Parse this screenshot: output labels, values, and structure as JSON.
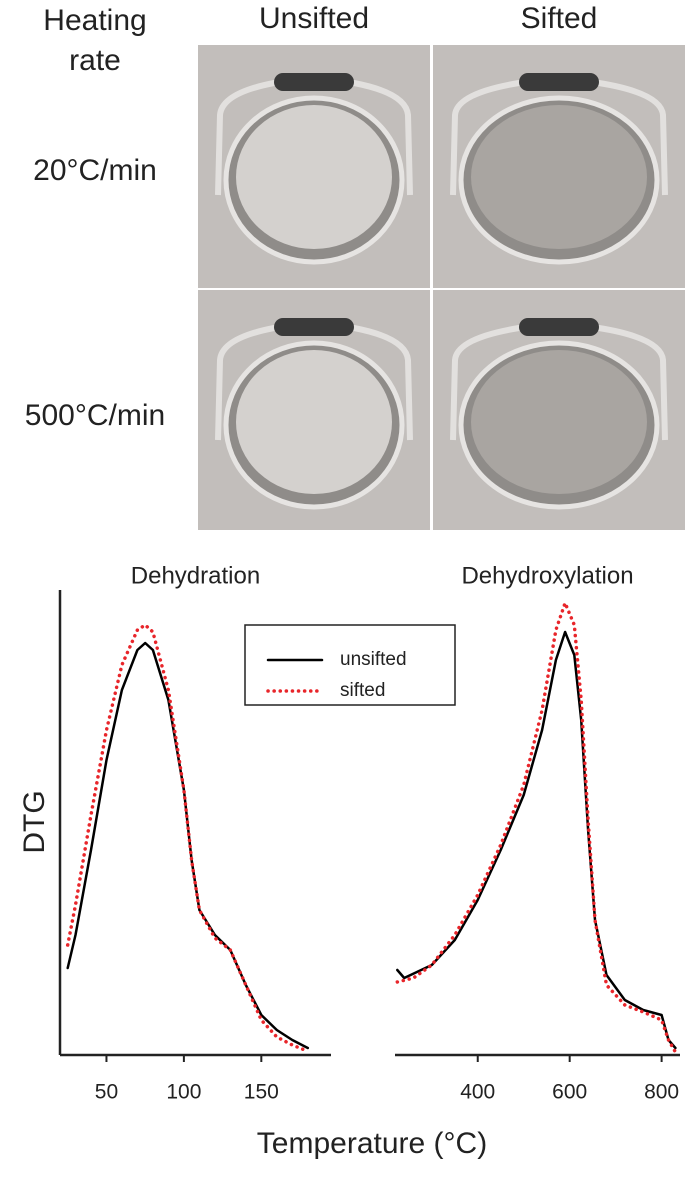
{
  "photo_grid": {
    "corner_header": "Heating rate",
    "columns": [
      "Unsifted",
      "Sifted"
    ],
    "rows": [
      "20°C/min",
      "500°C/min"
    ]
  },
  "axis_labels": {
    "y": "DTG",
    "x": "Temperature (°C)"
  },
  "chart_data": [
    {
      "type": "line",
      "title": "Dehydration",
      "xlim": [
        20,
        195
      ],
      "xticks": [
        50,
        100,
        150
      ],
      "ylim": [
        0,
        93
      ],
      "legend": "top",
      "series": [
        {
          "name": "unsifted",
          "color": "#000000",
          "style": "solid",
          "x": [
            25,
            30,
            40,
            50,
            60,
            70,
            75,
            80,
            90,
            100,
            105,
            110,
            120,
            130,
            140,
            150,
            160,
            170,
            180
          ],
          "values": [
            17.4,
            24,
            41,
            59,
            73,
            81,
            82.4,
            81,
            71,
            53,
            39,
            29,
            24,
            21,
            14,
            8,
            5,
            3,
            1.4
          ]
        },
        {
          "name": "sifted",
          "color": "#e8252a",
          "style": "dotted",
          "x": [
            25,
            30,
            40,
            50,
            60,
            70,
            75,
            80,
            90,
            100,
            105,
            110,
            120,
            130,
            140,
            150,
            160,
            170,
            178
          ],
          "values": [
            22,
            30,
            48,
            65,
            78,
            85,
            86,
            84.6,
            73,
            53,
            39,
            29,
            23.4,
            21,
            14,
            7,
            3.6,
            2,
            1
          ]
        }
      ]
    },
    {
      "type": "line",
      "title": "Dehydroxylation",
      "xlim": [
        220,
        840
      ],
      "xticks": [
        400,
        600,
        800
      ],
      "ylim": [
        0,
        93
      ],
      "series": [
        {
          "color": "#000000",
          "style": "solid",
          "x": [
            225,
            240,
            300,
            350,
            400,
            450,
            500,
            540,
            570,
            590,
            610,
            625,
            640,
            655,
            680,
            720,
            760,
            800,
            815,
            830
          ],
          "values": [
            17,
            15.4,
            18,
            23,
            31,
            41,
            52,
            65,
            79,
            84.6,
            80,
            67,
            45,
            27,
            16,
            11,
            9,
            8,
            3,
            1.4
          ]
        },
        {
          "color": "#e8252a",
          "style": "dotted",
          "x": [
            225,
            260,
            300,
            350,
            400,
            450,
            500,
            540,
            570,
            590,
            610,
            625,
            640,
            655,
            680,
            720,
            760,
            800,
            815,
            830
          ],
          "values": [
            14.6,
            15.4,
            18,
            24,
            32,
            42,
            54,
            69,
            85,
            90.4,
            86,
            71,
            47,
            27,
            14,
            10,
            8.6,
            7,
            3,
            0.6
          ]
        }
      ]
    }
  ]
}
